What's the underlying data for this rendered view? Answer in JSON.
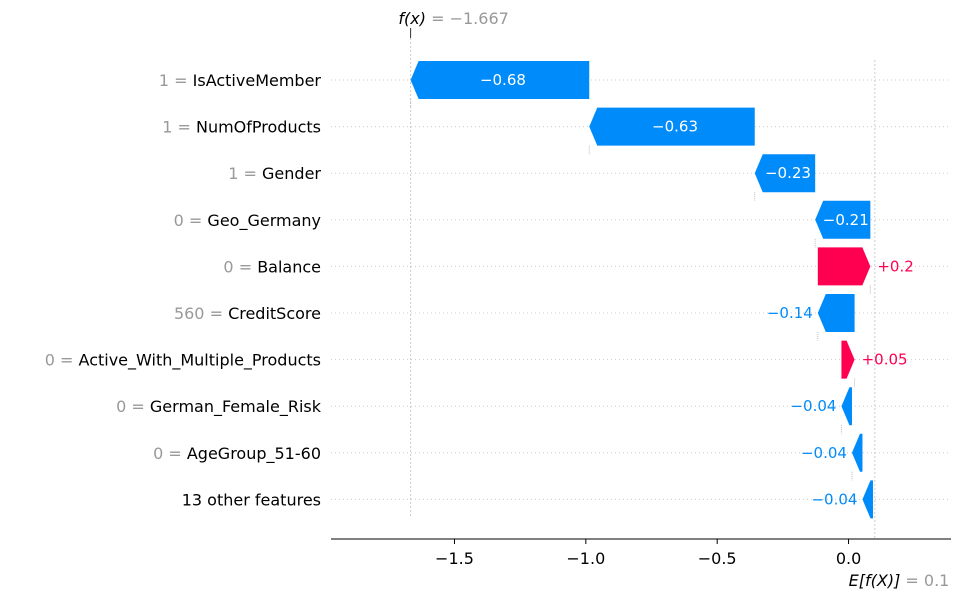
{
  "chart_data": {
    "type": "waterfall",
    "fx_label": "f(x)",
    "fx_value": "= −1.667",
    "fx": -1.667,
    "base_label": "E[f(X)]",
    "base_value_text": "= 0.1",
    "base_value": 0.1,
    "features": [
      {
        "value": "1",
        "name": "IsActiveMember",
        "start": -0.987,
        "end": -1.667,
        "label": "−0.68"
      },
      {
        "value": "1",
        "name": "NumOfProducts",
        "start": -0.357,
        "end": -0.987,
        "label": "−0.63"
      },
      {
        "value": "1",
        "name": "Gender",
        "start": -0.127,
        "end": -0.357,
        "label": "−0.23"
      },
      {
        "value": "0",
        "name": "Geo_Germany",
        "start": 0.083,
        "end": -0.127,
        "label": "−0.21"
      },
      {
        "value": "0",
        "name": "Balance",
        "start": -0.117,
        "end": 0.083,
        "label": "+0.2"
      },
      {
        "value": "560",
        "name": "CreditScore",
        "start": 0.023,
        "end": -0.117,
        "label": "−0.14"
      },
      {
        "value": "0",
        "name": "Active_With_Multiple_Products",
        "start": -0.027,
        "end": 0.023,
        "label": "+0.05"
      },
      {
        "value": "0",
        "name": "German_Female_Risk",
        "start": 0.013,
        "end": -0.027,
        "label": "−0.04"
      },
      {
        "value": "0",
        "name": "AgeGroup_51-60",
        "start": 0.053,
        "end": 0.013,
        "label": "−0.04"
      },
      {
        "value": "",
        "name": "13 other features",
        "start": 0.093,
        "end": 0.053,
        "label": "−0.04"
      }
    ],
    "xticks": [
      -1.5,
      -1.0,
      -0.5,
      0.0
    ],
    "xtick_labels": [
      "−1.5",
      "−1.0",
      "−0.5",
      "0.0"
    ],
    "xlim": [
      -1.97,
      0.39
    ],
    "colors": {
      "negative": "#008bfb",
      "positive": "#ff0051",
      "muted": "#999999",
      "grid": "#cccccc"
    }
  }
}
